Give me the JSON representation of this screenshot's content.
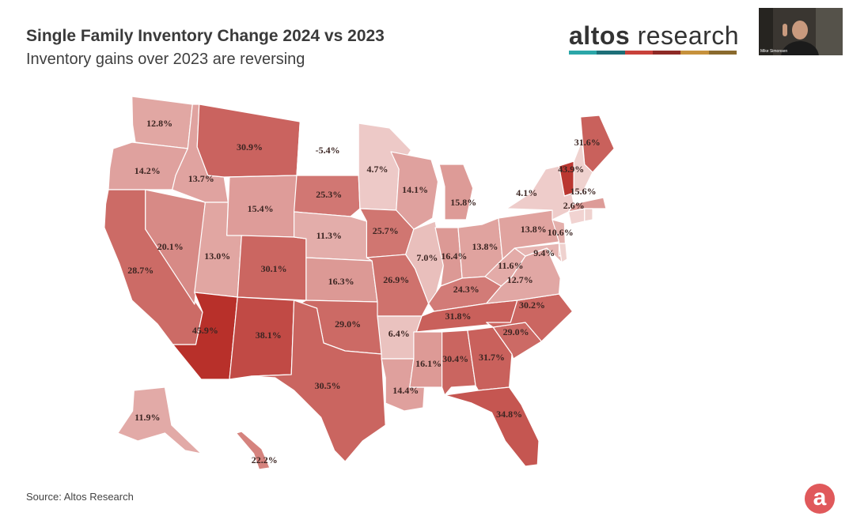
{
  "header": {
    "title": "Single Family Inventory Change 2024 vs 2023",
    "subtitle": "Inventory gains over 2023 are reversing"
  },
  "logo": {
    "text_bold": "altos",
    "text_light": " research",
    "bar_colors": [
      "#2ba6a8",
      "#1d6f78",
      "#c8413a",
      "#8e2a26",
      "#c6913c",
      "#8a6a2e"
    ]
  },
  "webcam": {
    "name": "Mike Simonsen"
  },
  "footer": {
    "source": "Source: Altos Research",
    "badge": "a"
  },
  "colors": {
    "scale_low": "#f6e3e1",
    "scale_high": "#b8302a",
    "scale_neg": "#ffffff"
  },
  "chart_data": {
    "type": "choropleth",
    "metric": "Single family inventory change, 2024 vs 2023 (%)",
    "states": [
      {
        "state": "WA",
        "value": 12.8,
        "label": "12.8%"
      },
      {
        "state": "OR",
        "value": 14.2,
        "label": "14.2%"
      },
      {
        "state": "CA",
        "value": 28.7,
        "label": "28.7%"
      },
      {
        "state": "NV",
        "value": 20.1,
        "label": "20.1%"
      },
      {
        "state": "ID",
        "value": 13.7,
        "label": "13.7%"
      },
      {
        "state": "MT",
        "value": 30.9,
        "label": "30.9%"
      },
      {
        "state": "WY",
        "value": 15.4,
        "label": "15.4%"
      },
      {
        "state": "UT",
        "value": 13.0,
        "label": "13.0%"
      },
      {
        "state": "AZ",
        "value": 45.9,
        "label": "45.9%"
      },
      {
        "state": "CO",
        "value": 30.1,
        "label": "30.1%"
      },
      {
        "state": "NM",
        "value": 38.1,
        "label": "38.1%"
      },
      {
        "state": "ND",
        "value": -5.4,
        "label": "-5.4%"
      },
      {
        "state": "SD",
        "value": 25.3,
        "label": "25.3%"
      },
      {
        "state": "NE",
        "value": 11.3,
        "label": "11.3%"
      },
      {
        "state": "KS",
        "value": 16.3,
        "label": "16.3%"
      },
      {
        "state": "OK",
        "value": 29.0,
        "label": "29.0%"
      },
      {
        "state": "TX",
        "value": 30.5,
        "label": "30.5%"
      },
      {
        "state": "MN",
        "value": 4.7,
        "label": "4.7%"
      },
      {
        "state": "IA",
        "value": 25.7,
        "label": "25.7%"
      },
      {
        "state": "MO",
        "value": 26.9,
        "label": "26.9%"
      },
      {
        "state": "AR",
        "value": 6.4,
        "label": "6.4%"
      },
      {
        "state": "LA",
        "value": 14.4,
        "label": "14.4%"
      },
      {
        "state": "WI",
        "value": 14.1,
        "label": "14.1%"
      },
      {
        "state": "IL",
        "value": 7.0,
        "label": "7.0%"
      },
      {
        "state": "MI",
        "value": 15.8,
        "label": "15.8%"
      },
      {
        "state": "IN",
        "value": 16.4,
        "label": "16.4%"
      },
      {
        "state": "OH",
        "value": 13.8,
        "label": "13.8%"
      },
      {
        "state": "KY",
        "value": 24.3,
        "label": "24.3%"
      },
      {
        "state": "TN",
        "value": 31.8,
        "label": "31.8%"
      },
      {
        "state": "MS",
        "value": 16.1,
        "label": "16.1%"
      },
      {
        "state": "AL",
        "value": 30.4,
        "label": "30.4%"
      },
      {
        "state": "GA",
        "value": 31.7,
        "label": "31.7%"
      },
      {
        "state": "FL",
        "value": 34.8,
        "label": "34.8%"
      },
      {
        "state": "SC",
        "value": 29.0,
        "label": "29.0%"
      },
      {
        "state": "NC",
        "value": 30.2,
        "label": "30.2%"
      },
      {
        "state": "VA",
        "value": 12.7,
        "label": "12.7%"
      },
      {
        "state": "WV",
        "value": 11.6,
        "label": "11.6%"
      },
      {
        "state": "MD",
        "value": 9.4,
        "label": "9.4%"
      },
      {
        "state": "PA",
        "value": 13.8,
        "label": "13.8%"
      },
      {
        "state": "NJ",
        "value": 10.6,
        "label": "10.6%"
      },
      {
        "state": "NY",
        "value": 4.1,
        "label": "4.1%"
      },
      {
        "state": "CT",
        "value": 2.6,
        "label": "2.6%"
      },
      {
        "state": "MA",
        "value": 15.6,
        "label": "15.6%"
      },
      {
        "state": "VT",
        "value": 43.9,
        "label": "43.9%"
      },
      {
        "state": "ME",
        "value": 31.6,
        "label": "31.6%"
      },
      {
        "state": "AK",
        "value": 11.9,
        "label": "11.9%"
      },
      {
        "state": "HI",
        "value": 22.2,
        "label": "22.2%"
      }
    ]
  }
}
